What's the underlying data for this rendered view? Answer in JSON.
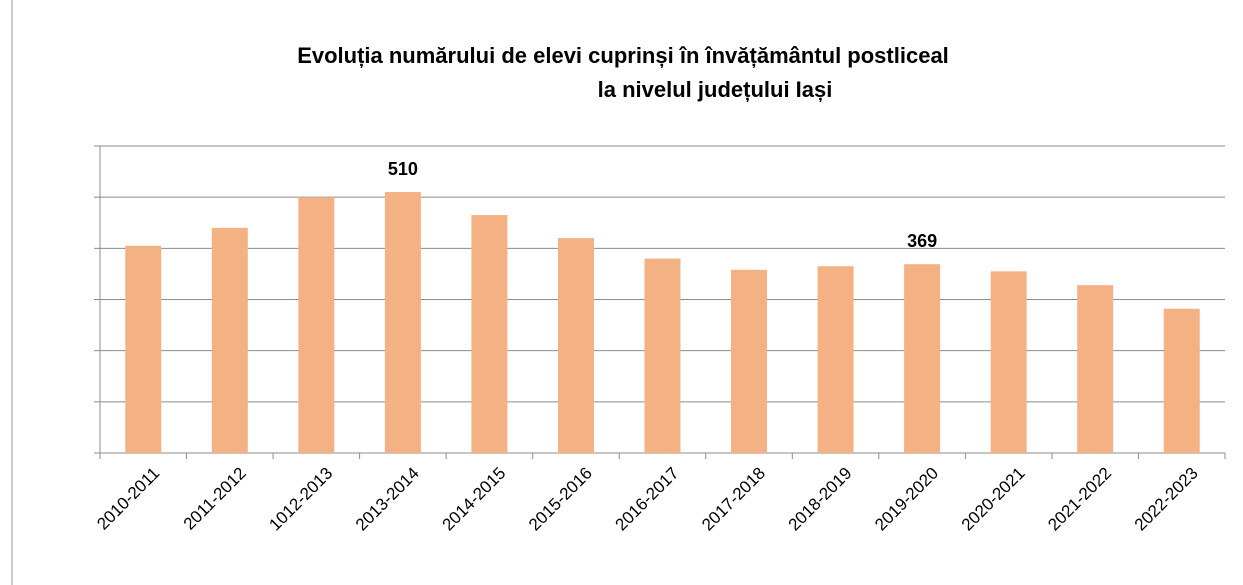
{
  "chart_data": {
    "type": "bar",
    "title": [
      "Evoluția numărului de elevi cuprinși în învățământul postliceal",
      "la nivelul județului Iași"
    ],
    "categories": [
      "2010-2011",
      "2011-2012",
      "1012-2013",
      "2013-2014",
      "2014-2015",
      "2015-2016",
      "2016-2017",
      "2017-2018",
      "2018-2019",
      "2019-2020",
      "2020-2021",
      "2021-2022",
      "2022-2023"
    ],
    "values": [
      405,
      440,
      500,
      510,
      465,
      420,
      380,
      358,
      365,
      369,
      355,
      328,
      282
    ],
    "value_labels": [
      null,
      null,
      null,
      "510",
      null,
      null,
      null,
      null,
      null,
      "369",
      null,
      null,
      null
    ],
    "color": "#f4b183",
    "ylim": [
      0,
      600
    ],
    "yticks": [
      0,
      100,
      200,
      300,
      400,
      500,
      600
    ],
    "grid": true
  }
}
